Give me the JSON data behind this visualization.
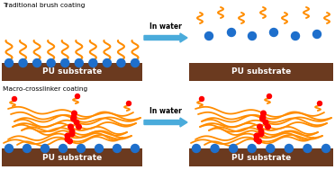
{
  "bg_color": "#ffffff",
  "substrate_color": "#6B3A1F",
  "brush_color": "#FF8C00",
  "node_color": "#FF0000",
  "ball_color": "#1E6FCC",
  "arrow_color": "#4AABDB",
  "title1": "Traditional brush coating",
  "title2": "Macro-crosslinker coating",
  "substrate_label": "PU substrate",
  "arrow_label": "In water",
  "figw": 3.72,
  "figh": 1.89,
  "dpi": 100
}
